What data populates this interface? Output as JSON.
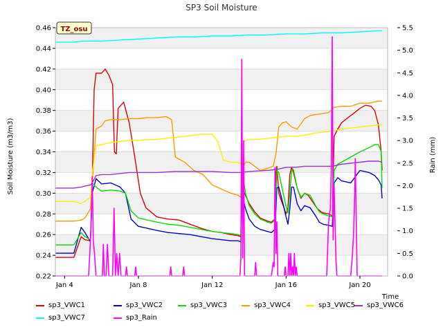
{
  "chart_data": {
    "type": "line",
    "title": "SP3 Soil Moisture",
    "xlabel": "Time",
    "ylabel": "Soil Moisture (m3/m3)",
    "y2label": "Rain (mm)",
    "badge": "TZ_osu",
    "xlim": [
      3.5,
      21.5
    ],
    "ylim": [
      0.22,
      0.46
    ],
    "y2lim": [
      0.0,
      5.5
    ],
    "xticks": [
      {
        "x": 4,
        "label": "Jan 4"
      },
      {
        "x": 8,
        "label": "Jan 8"
      },
      {
        "x": 12,
        "label": "Jan 12"
      },
      {
        "x": 16,
        "label": "Jan 16"
      },
      {
        "x": 20,
        "label": "Jan 20"
      }
    ],
    "yticks": [
      "0.22",
      "0.24",
      "0.26",
      "0.28",
      "0.30",
      "0.32",
      "0.34",
      "0.36",
      "0.38",
      "0.40",
      "0.42",
      "0.44",
      "0.46"
    ],
    "y2ticks": [
      "0.0",
      "0.5",
      "1.0",
      "1.5",
      "2.0",
      "2.5",
      "3.0",
      "3.5",
      "4.0",
      "4.5",
      "5.0",
      "5.5"
    ],
    "series": [
      {
        "name": "sp3_VWC1",
        "color": "#e00000",
        "axis": "left",
        "x": [
          3.5,
          4.5,
          4.9,
          5.1,
          5.4,
          5.5,
          5.6,
          5.7,
          6.0,
          6.2,
          6.4,
          6.6,
          6.7,
          6.8,
          6.9,
          7.2,
          7.5,
          7.8,
          8.1,
          8.4,
          9.0,
          9.6,
          10.2,
          10.8,
          11.4,
          12.0,
          12.5,
          13.0,
          13.4,
          13.55,
          13.6,
          13.7,
          14.0,
          14.3,
          14.6,
          15.0,
          15.2,
          15.4,
          15.45,
          15.5,
          15.6,
          15.8,
          16.0,
          16.1,
          16.2,
          16.3,
          16.4,
          16.6,
          16.8,
          17.0,
          17.2,
          17.5,
          17.7,
          17.9,
          18.0,
          18.3,
          18.5,
          18.6,
          18.8,
          19.0,
          19.5,
          20.0,
          20.3,
          20.6,
          20.8,
          21.0,
          21.15,
          21.2
        ],
        "y": [
          0.238,
          0.238,
          0.258,
          0.255,
          0.254,
          0.31,
          0.4,
          0.416,
          0.416,
          0.42,
          0.414,
          0.405,
          0.34,
          0.338,
          0.382,
          0.388,
          0.368,
          0.335,
          0.3,
          0.286,
          0.277,
          0.275,
          0.274,
          0.27,
          0.266,
          0.263,
          0.262,
          0.26,
          0.259,
          0.258,
          0.32,
          0.302,
          0.29,
          0.282,
          0.276,
          0.273,
          0.272,
          0.275,
          0.32,
          0.326,
          0.3,
          0.29,
          0.28,
          0.286,
          0.318,
          0.325,
          0.32,
          0.305,
          0.295,
          0.3,
          0.298,
          0.29,
          0.285,
          0.282,
          0.281,
          0.28,
          0.278,
          0.355,
          0.362,
          0.368,
          0.375,
          0.382,
          0.385,
          0.384,
          0.38,
          0.366,
          0.34,
          0.322
        ]
      },
      {
        "name": "sp3_VWC2",
        "color": "#0000cc",
        "axis": "left",
        "x": [
          3.5,
          4.5,
          4.9,
          5.1,
          5.4,
          5.5,
          5.7,
          6.0,
          6.5,
          7.0,
          7.3,
          7.6,
          8.0,
          8.5,
          9.0,
          9.6,
          10.2,
          10.8,
          11.4,
          12.0,
          12.5,
          13.0,
          13.4,
          13.55,
          13.6,
          13.8,
          14.0,
          14.3,
          14.6,
          15.0,
          15.2,
          15.4,
          15.5,
          15.6,
          15.9,
          16.0,
          16.1,
          16.2,
          16.3,
          16.4,
          16.6,
          16.8,
          17.0,
          17.3,
          17.6,
          17.8,
          18.0,
          18.3,
          18.5,
          18.6,
          18.8,
          19.0,
          19.5,
          20.0,
          20.5,
          20.8,
          21.0,
          21.15,
          21.2
        ],
        "y": [
          0.242,
          0.242,
          0.267,
          0.262,
          0.253,
          0.3,
          0.314,
          0.309,
          0.31,
          0.306,
          0.3,
          0.275,
          0.268,
          0.266,
          0.264,
          0.262,
          0.261,
          0.26,
          0.258,
          0.256,
          0.255,
          0.254,
          0.254,
          0.253,
          0.3,
          0.285,
          0.275,
          0.268,
          0.265,
          0.263,
          0.262,
          0.265,
          0.305,
          0.306,
          0.285,
          0.277,
          0.27,
          0.285,
          0.306,
          0.306,
          0.29,
          0.283,
          0.288,
          0.286,
          0.278,
          0.272,
          0.27,
          0.269,
          0.268,
          0.31,
          0.315,
          0.312,
          0.31,
          0.322,
          0.32,
          0.317,
          0.313,
          0.308,
          0.295
        ]
      },
      {
        "name": "sp3_VWC3",
        "color": "#00dd00",
        "axis": "left",
        "x": [
          3.5,
          4.5,
          4.9,
          5.1,
          5.4,
          5.5,
          5.7,
          6.0,
          6.5,
          7.0,
          7.3,
          7.6,
          8.0,
          8.5,
          9.0,
          9.6,
          10.2,
          10.8,
          11.4,
          12.0,
          12.5,
          13.0,
          13.4,
          13.55,
          13.6,
          13.8,
          14.0,
          14.3,
          14.6,
          15.0,
          15.2,
          15.4,
          15.5,
          15.6,
          15.9,
          16.0,
          16.1,
          16.2,
          16.3,
          16.4,
          16.6,
          16.8,
          17.0,
          17.3,
          17.6,
          17.8,
          18.0,
          18.3,
          18.5,
          18.6,
          18.8,
          19.0,
          19.5,
          20.0,
          20.5,
          20.8,
          21.0,
          21.15,
          21.2
        ],
        "y": [
          0.25,
          0.25,
          0.262,
          0.258,
          0.255,
          0.31,
          0.306,
          0.302,
          0.303,
          0.302,
          0.3,
          0.283,
          0.276,
          0.274,
          0.272,
          0.27,
          0.269,
          0.267,
          0.265,
          0.263,
          0.262,
          0.261,
          0.26,
          0.259,
          0.324,
          0.3,
          0.288,
          0.28,
          0.275,
          0.272,
          0.271,
          0.274,
          0.322,
          0.32,
          0.295,
          0.287,
          0.281,
          0.3,
          0.322,
          0.323,
          0.305,
          0.296,
          0.3,
          0.298,
          0.288,
          0.282,
          0.28,
          0.278,
          0.277,
          0.322,
          0.328,
          0.33,
          0.335,
          0.34,
          0.344,
          0.347,
          0.347,
          0.34,
          0.305
        ]
      },
      {
        "name": "sp3_VWC4",
        "color": "#ff9900",
        "axis": "left",
        "x": [
          3.5,
          4.5,
          4.9,
          5.1,
          5.4,
          5.5,
          5.7,
          6.0,
          6.2,
          6.5,
          7.0,
          7.5,
          8.0,
          8.5,
          9.0,
          9.5,
          9.8,
          10.0,
          10.5,
          11.0,
          11.5,
          12.0,
          12.5,
          13.0,
          13.4,
          13.55,
          13.6,
          13.8,
          14.0,
          14.3,
          14.6,
          15.0,
          15.3,
          15.45,
          15.6,
          15.8,
          16.0,
          16.3,
          16.6,
          17.0,
          17.3,
          17.6,
          18.0,
          18.3,
          18.6,
          19.0,
          19.5,
          20.0,
          20.5,
          21.0,
          21.2
        ],
        "y": [
          0.273,
          0.273,
          0.274,
          0.276,
          0.285,
          0.31,
          0.362,
          0.365,
          0.37,
          0.371,
          0.371,
          0.372,
          0.372,
          0.373,
          0.373,
          0.374,
          0.371,
          0.335,
          0.33,
          0.322,
          0.318,
          0.308,
          0.304,
          0.3,
          0.298,
          0.296,
          0.322,
          0.33,
          0.33,
          0.326,
          0.322,
          0.324,
          0.326,
          0.338,
          0.364,
          0.368,
          0.369,
          0.364,
          0.362,
          0.372,
          0.375,
          0.376,
          0.377,
          0.378,
          0.383,
          0.384,
          0.384,
          0.387,
          0.387,
          0.389,
          0.389
        ]
      },
      {
        "name": "sp3_VWC5",
        "color": "#ffee00",
        "axis": "left",
        "x": [
          3.5,
          4.5,
          4.9,
          5.1,
          5.4,
          5.5,
          5.7,
          6.0,
          6.5,
          7.0,
          7.5,
          8.0,
          8.5,
          9.0,
          9.5,
          10.0,
          10.5,
          11.0,
          11.5,
          12.0,
          12.3,
          12.6,
          13.0,
          13.4,
          13.55,
          13.6,
          13.8,
          14.0,
          14.5,
          15.0,
          15.5,
          16.0,
          16.5,
          17.0,
          17.5,
          18.0,
          18.5,
          19.0,
          19.5,
          20.0,
          20.5,
          21.0,
          21.2
        ],
        "y": [
          0.292,
          0.292,
          0.29,
          0.292,
          0.296,
          0.32,
          0.346,
          0.347,
          0.349,
          0.35,
          0.351,
          0.351,
          0.352,
          0.352,
          0.353,
          0.354,
          0.355,
          0.356,
          0.357,
          0.357,
          0.35,
          0.332,
          0.33,
          0.33,
          0.328,
          0.346,
          0.351,
          0.352,
          0.352,
          0.353,
          0.354,
          0.355,
          0.355,
          0.356,
          0.358,
          0.359,
          0.36,
          0.362,
          0.363,
          0.364,
          0.365,
          0.366,
          0.366
        ]
      },
      {
        "name": "sp3_VWC6",
        "color": "#9933cc",
        "axis": "left",
        "x": [
          3.5,
          4.5,
          4.9,
          5.1,
          5.4,
          5.5,
          5.7,
          6.0,
          6.5,
          7.0,
          7.5,
          8.0,
          9.0,
          10.0,
          11.0,
          12.0,
          13.0,
          13.5,
          14.0,
          15.0,
          15.5,
          16.0,
          16.5,
          17.0,
          17.5,
          18.0,
          18.5,
          19.0,
          19.5,
          20.0,
          20.5,
          21.0,
          21.2
        ],
        "y": [
          0.305,
          0.305,
          0.306,
          0.307,
          0.308,
          0.31,
          0.317,
          0.318,
          0.318,
          0.319,
          0.32,
          0.32,
          0.32,
          0.321,
          0.321,
          0.321,
          0.32,
          0.32,
          0.321,
          0.322,
          0.323,
          0.325,
          0.325,
          0.326,
          0.326,
          0.326,
          0.326,
          0.328,
          0.329,
          0.33,
          0.331,
          0.331,
          0.33
        ]
      },
      {
        "name": "sp3_VWC7",
        "color": "#00ffff",
        "axis": "left",
        "x": [
          3.5,
          4.5,
          5.0,
          6.0,
          7.0,
          8.0,
          9.0,
          10.0,
          11.0,
          12.0,
          13.0,
          14.0,
          15.0,
          16.0,
          17.0,
          18.0,
          19.0,
          20.0,
          21.0,
          21.2
        ],
        "y": [
          0.446,
          0.446,
          0.447,
          0.447,
          0.448,
          0.449,
          0.45,
          0.451,
          0.451,
          0.452,
          0.452,
          0.453,
          0.453,
          0.454,
          0.454,
          0.455,
          0.455,
          0.456,
          0.457,
          0.457
        ]
      },
      {
        "name": "sp3_Rain",
        "color": "#ff00ff",
        "axis": "right",
        "x": [
          3.5,
          5.3,
          5.38,
          5.45,
          5.5,
          5.55,
          5.62,
          5.7,
          5.76,
          5.82,
          6.05,
          6.1,
          6.15,
          6.25,
          6.32,
          6.4,
          6.6,
          6.68,
          6.75,
          6.82,
          6.9,
          6.98,
          7.05,
          7.3,
          7.35,
          7.4,
          7.8,
          7.85,
          7.9,
          9.7,
          9.75,
          9.8,
          10.4,
          10.45,
          10.5,
          13.5,
          13.55,
          13.6,
          13.65,
          13.7,
          13.75,
          14.3,
          14.35,
          14.4,
          15.2,
          15.3,
          15.35,
          15.4,
          15.45,
          15.5,
          15.55,
          15.9,
          15.95,
          16.0,
          16.1,
          16.15,
          16.2,
          16.25,
          16.3,
          16.35,
          16.4,
          16.45,
          16.5,
          16.55,
          16.6,
          16.65,
          16.7,
          18.2,
          18.3,
          18.4,
          18.45,
          18.5,
          18.55,
          18.6,
          18.65,
          18.7,
          18.75,
          18.8,
          19.5,
          19.6,
          19.65,
          19.7,
          19.75,
          19.8,
          19.85,
          21.2
        ],
        "y": [
          0,
          0,
          0.6,
          1.3,
          2.2,
          0.8,
          0.5,
          0,
          0,
          0,
          0,
          0.7,
          0,
          0,
          0.7,
          0,
          0,
          1.5,
          0,
          0.5,
          0,
          0.5,
          0,
          0,
          0.2,
          0,
          0,
          0.2,
          0,
          0,
          0.2,
          0,
          0,
          0.2,
          0,
          0,
          0.4,
          4.8,
          0.4,
          3.0,
          0,
          0,
          0.3,
          0,
          0,
          0.3,
          0.2,
          2.4,
          0.5,
          1.2,
          0,
          0,
          0.2,
          0,
          0,
          0.5,
          0,
          0.5,
          0,
          0.2,
          0,
          0.5,
          0,
          0.2,
          0,
          0,
          0,
          0,
          1.2,
          1.5,
          2.5,
          5.3,
          0.8,
          2.0,
          1.2,
          0.4,
          0,
          0,
          0,
          0.5,
          0.9,
          1.5,
          2.6,
          1.2,
          0,
          0
        ]
      }
    ]
  }
}
